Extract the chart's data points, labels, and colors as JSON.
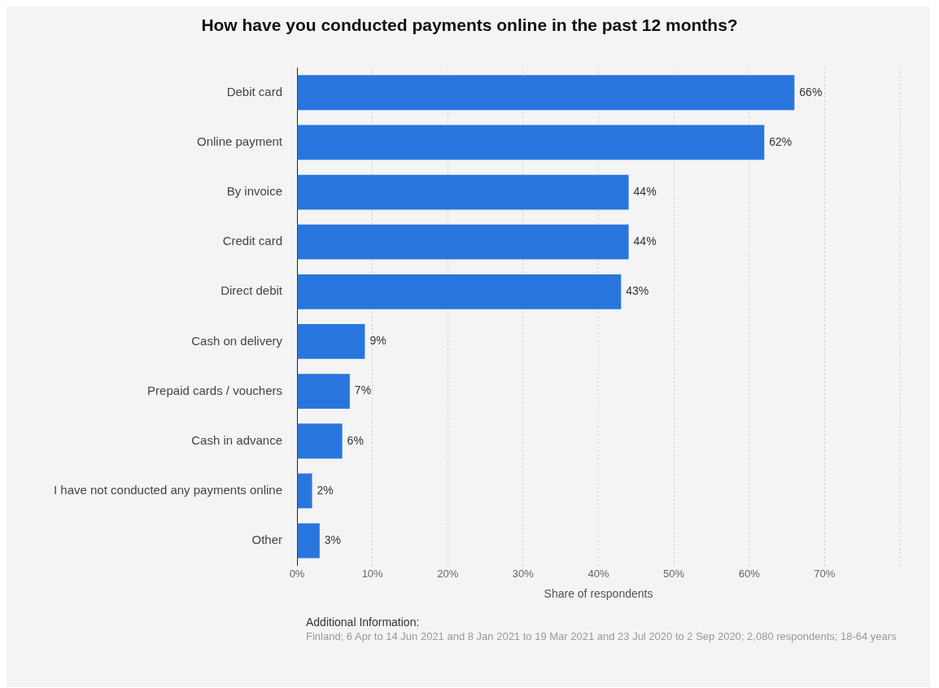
{
  "chart_data": {
    "type": "bar",
    "orientation": "horizontal",
    "title": "How have you conducted payments online in the past 12 months?",
    "categories": [
      "Debit card",
      "Online payment",
      "By invoice",
      "Credit card",
      "Direct debit",
      "Cash on delivery",
      "Prepaid cards / vouchers",
      "Cash in advance",
      "I have not conducted any payments online",
      "Other"
    ],
    "values": [
      66,
      62,
      44,
      44,
      43,
      9,
      7,
      6,
      2,
      3
    ],
    "value_labels": [
      "66%",
      "62%",
      "44%",
      "44%",
      "43%",
      "9%",
      "7%",
      "6%",
      "2%",
      "3%"
    ],
    "color": "#2876dd",
    "xlabel": "Share of respondents",
    "xlim": [
      0,
      80
    ],
    "xticks": [
      {
        "value": 0,
        "label": "0%"
      },
      {
        "value": 10,
        "label": "10%"
      },
      {
        "value": 20,
        "label": "20%"
      },
      {
        "value": 30,
        "label": "30%"
      },
      {
        "value": 40,
        "label": "40%"
      },
      {
        "value": 50,
        "label": "50%"
      },
      {
        "value": 60,
        "label": "60%"
      },
      {
        "value": 70,
        "label": "70%"
      },
      {
        "value": 80,
        "label": null
      }
    ],
    "grid": "x",
    "annotations": [
      "Additional Information:",
      "Finland; 6 Apr to 14 Jun 2021 and 8 Jan 2021 to 19 Mar 2021 and 23 Jul 2020 to 2 Sep 2020; 2,080 respondents; 18-64 years"
    ]
  }
}
